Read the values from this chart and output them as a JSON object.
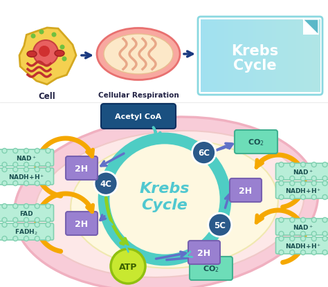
{
  "bg_color": "#ffffff",
  "title_top": "Krebs\nCycle",
  "title_krebs": "Krebs\nCycle",
  "cell_label": "Cell",
  "resp_label": "Cellular Respiration",
  "acetyl_coa": "Acetyl CoA",
  "node_color": "#2b5a8a",
  "cycle_color": "#4ecdc4",
  "krebs_box_gradient_left": "#a0e8f0",
  "krebs_box_gradient_right": "#4ecdc4",
  "outer_blob_color": "#f8ccd8",
  "outer_blob_edge": "#f0b0c0",
  "inner_blob_color": "#fef8e0",
  "inner_blob_edge": "#f0e8b0",
  "teal_arrow_color": "#4ecdc4",
  "blue_arrow_color": "#6070c8",
  "yellow_arrow_color": "#f5a800",
  "green_arrow_color": "#90d020",
  "co2_box_color": "#6dddb8",
  "co2_box_edge": "#40b090",
  "h2_box_color": "#9980d0",
  "h2_box_edge": "#7760b0",
  "nad_box_color": "#b8eed8",
  "nad_box_edge": "#80d0b0",
  "atp_color": "#c8e830",
  "atp_edge": "#90c010",
  "cell_color": "#f5d050",
  "cell_edge": "#d4a820",
  "nuc_color": "#e86060",
  "mit_outer": "#f8a8a0",
  "mit_inner": "#fce8c8",
  "mit_edge": "#e87070"
}
